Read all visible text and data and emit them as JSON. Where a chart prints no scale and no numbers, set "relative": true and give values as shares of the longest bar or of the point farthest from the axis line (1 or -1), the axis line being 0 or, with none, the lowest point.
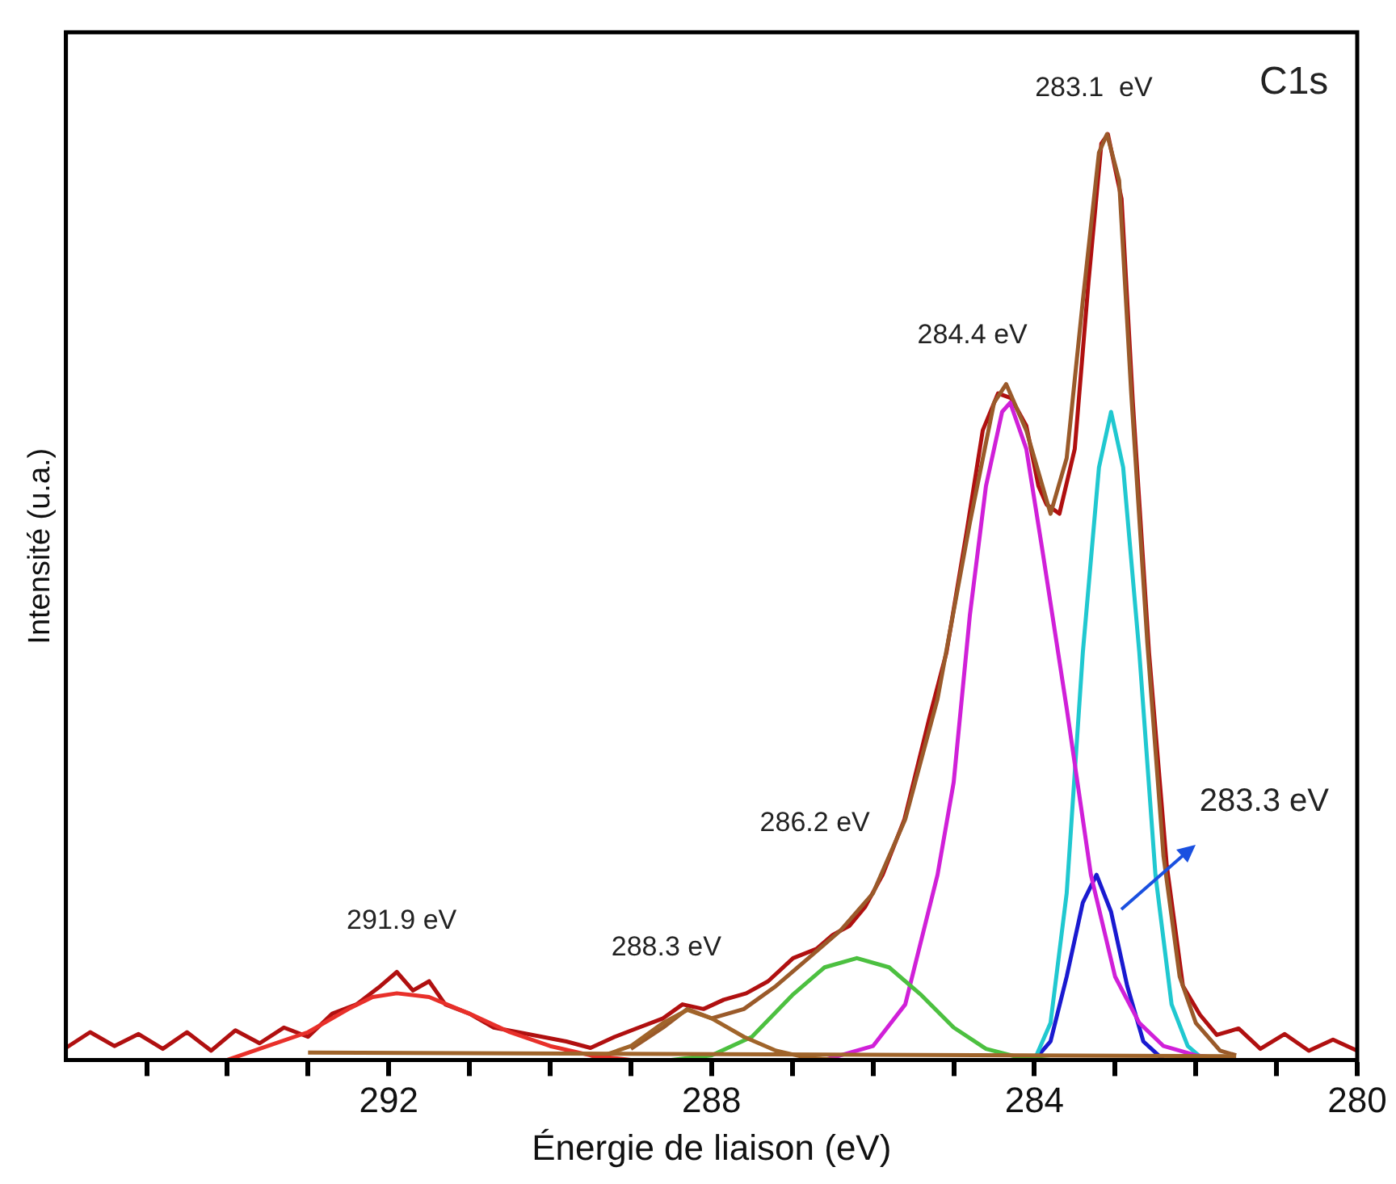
{
  "chart_data": {
    "type": "line",
    "relative": true,
    "xlabel": "Énergie de liaison (eV)",
    "ylabel": "Intensité (u.a.)",
    "xlim": [
      296,
      280
    ],
    "xticks": [
      {
        "value": 295,
        "label": null
      },
      {
        "value": 294,
        "label": null
      },
      {
        "value": 293,
        "label": null
      },
      292,
      {
        "value": 291,
        "label": null
      },
      {
        "value": 290,
        "label": null
      },
      {
        "value": 289,
        "label": null
      },
      288,
      {
        "value": 287,
        "label": null
      },
      {
        "value": 286,
        "label": null
      },
      {
        "value": 285,
        "label": null
      },
      284,
      {
        "value": 283,
        "label": null
      },
      {
        "value": 282,
        "label": null
      },
      {
        "value": 281,
        "label": null
      },
      280
    ],
    "grid": false,
    "legend": false,
    "marker": "none",
    "line_style": "solid",
    "series": [
      {
        "color": "#a0642a",
        "x": [
          293,
          281.5
        ],
        "values": [
          0.008,
          0.004
        ]
      },
      {
        "color": "#e8302a",
        "x": [
          294,
          293.5,
          293,
          292.5,
          292.2,
          291.9,
          291.5,
          291,
          290.5,
          290,
          289.5,
          289
        ],
        "values": [
          0,
          0.015,
          0.03,
          0.055,
          0.068,
          0.072,
          0.068,
          0.05,
          0.03,
          0.015,
          0.005,
          0
        ]
      },
      {
        "color": "#a0642a",
        "x": [
          289.5,
          289,
          288.6,
          288.3,
          288,
          287.6,
          287.2,
          286.8,
          286.4
        ],
        "values": [
          0,
          0.015,
          0.04,
          0.054,
          0.045,
          0.025,
          0.01,
          0.002,
          0
        ]
      },
      {
        "color": "#4cc040",
        "x": [
          288.5,
          288,
          287.5,
          287,
          286.6,
          286.2,
          285.8,
          285.4,
          285,
          284.6,
          284.2,
          283.8
        ],
        "values": [
          0,
          0.005,
          0.025,
          0.07,
          0.1,
          0.11,
          0.1,
          0.07,
          0.035,
          0.012,
          0.003,
          0
        ]
      },
      {
        "color": "#d020d8",
        "x": [
          286.6,
          286,
          285.6,
          285.2,
          285,
          284.8,
          284.6,
          284.4,
          284.3,
          284.1,
          283.9,
          283.6,
          283.3,
          283,
          282.7,
          282.4,
          282,
          281.5
        ],
        "values": [
          0,
          0.015,
          0.06,
          0.2,
          0.3,
          0.48,
          0.62,
          0.7,
          0.71,
          0.66,
          0.55,
          0.38,
          0.2,
          0.09,
          0.04,
          0.015,
          0.005,
          0
        ]
      },
      {
        "color": "#20c8d0",
        "x": [
          284,
          283.8,
          283.6,
          283.4,
          283.2,
          283.05,
          282.9,
          282.7,
          282.5,
          282.3,
          282.1,
          281.9
        ],
        "values": [
          0,
          0.04,
          0.18,
          0.44,
          0.64,
          0.7,
          0.64,
          0.44,
          0.2,
          0.06,
          0.015,
          0
        ]
      },
      {
        "color": "#1a1ad0",
        "x": [
          284,
          283.8,
          283.6,
          283.4,
          283.23,
          283.05,
          282.85,
          282.65,
          282.4
        ],
        "values": [
          0,
          0.02,
          0.09,
          0.17,
          0.2,
          0.16,
          0.08,
          0.02,
          0
        ]
      },
      {
        "color": "#9a5a2a",
        "x": [
          289,
          288.6,
          288.3,
          288,
          287.6,
          287.2,
          286.8,
          286.4,
          286,
          285.6,
          285.2,
          284.8,
          284.5,
          284.35,
          284.1,
          283.8,
          283.6,
          283.4,
          283.2,
          283.1,
          282.95,
          282.8,
          282.6,
          282.4,
          282.2,
          282,
          281.7,
          281.5
        ],
        "values": [
          0.012,
          0.035,
          0.055,
          0.045,
          0.055,
          0.08,
          0.11,
          0.14,
          0.18,
          0.26,
          0.39,
          0.58,
          0.71,
          0.73,
          0.68,
          0.59,
          0.65,
          0.82,
          0.98,
          1,
          0.95,
          0.72,
          0.45,
          0.22,
          0.09,
          0.04,
          0.01,
          0.005
        ]
      },
      {
        "color": "#b01010",
        "x": [
          296,
          295.7,
          295.4,
          295.1,
          294.8,
          294.5,
          294.2,
          293.9,
          293.6,
          293.3,
          293,
          292.7,
          292.4,
          292.1,
          291.9,
          291.7,
          291.5,
          291.3,
          291,
          290.7,
          290.4,
          290.1,
          289.8,
          289.5,
          289.2,
          288.9,
          288.6,
          288.36,
          288.1,
          287.85,
          287.57,
          287.3,
          286.99,
          286.7,
          286.5,
          286.29,
          286.1,
          285.88,
          285.61,
          285.3,
          285.09,
          284.84,
          284.64,
          284.45,
          284.29,
          284.1,
          283.95,
          283.85,
          283.69,
          283.5,
          283.33,
          283.17,
          283.09,
          282.92,
          282.78,
          282.58,
          282.36,
          282.16,
          281.95,
          281.74,
          281.47,
          281.2,
          280.9,
          280.6,
          280.3,
          280
        ],
        "values": [
          0.013,
          0.03,
          0.015,
          0.028,
          0.012,
          0.03,
          0.01,
          0.032,
          0.018,
          0.035,
          0.025,
          0.05,
          0.06,
          0.08,
          0.095,
          0.075,
          0.085,
          0.06,
          0.05,
          0.035,
          0.03,
          0.025,
          0.02,
          0.013,
          0.025,
          0.035,
          0.045,
          0.06,
          0.055,
          0.065,
          0.072,
          0.085,
          0.11,
          0.12,
          0.135,
          0.145,
          0.165,
          0.2,
          0.26,
          0.37,
          0.44,
          0.57,
          0.68,
          0.72,
          0.715,
          0.685,
          0.62,
          0.6,
          0.59,
          0.66,
          0.84,
          0.99,
          1,
          0.93,
          0.71,
          0.44,
          0.21,
          0.08,
          0.049,
          0.027,
          0.034,
          0.012,
          0.028,
          0.01,
          0.022,
          0.01
        ]
      }
    ],
    "annotations": [
      "C1s",
      "283.1  eV",
      "284.4 eV",
      "286.2 eV",
      "291.9 eV",
      "288.3 eV",
      "283.3 eV"
    ]
  }
}
